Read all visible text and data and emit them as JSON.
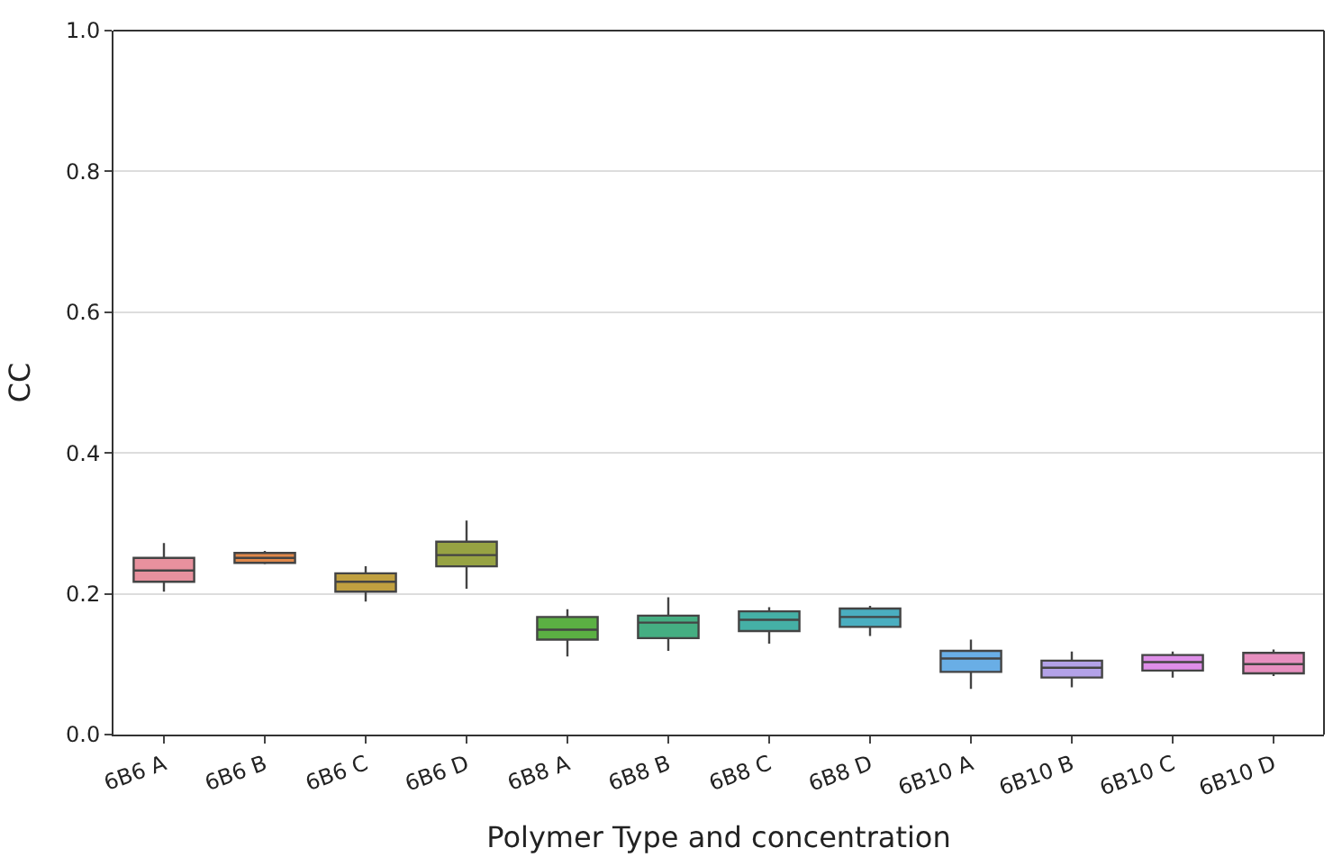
{
  "chart_data": {
    "type": "box",
    "xlabel": "Polymer Type and concentration",
    "ylabel": "CC",
    "categories": [
      "6B6 A",
      "6B6 B",
      "6B6 C",
      "6B6 D",
      "6B8 A",
      "6B8 B",
      "6B8 C",
      "6B8 D",
      "6B10 A",
      "6B10 B",
      "6B10 C",
      "6B10 D"
    ],
    "colors": [
      "#e8919e",
      "#e0884a",
      "#c0a040",
      "#97a343",
      "#5bb043",
      "#45ae82",
      "#45b0a6",
      "#4aaec0",
      "#69aee6",
      "#b3a2e8",
      "#de8ee8",
      "#e78fbf"
    ],
    "boxes": [
      {
        "low": 0.203,
        "q1": 0.217,
        "median": 0.233,
        "q3": 0.251,
        "high": 0.272
      },
      {
        "low": 0.242,
        "q1": 0.244,
        "median": 0.251,
        "q3": 0.258,
        "high": 0.261
      },
      {
        "low": 0.189,
        "q1": 0.203,
        "median": 0.217,
        "q3": 0.229,
        "high": 0.239
      },
      {
        "low": 0.207,
        "q1": 0.239,
        "median": 0.255,
        "q3": 0.274,
        "high": 0.304
      },
      {
        "low": 0.111,
        "q1": 0.135,
        "median": 0.149,
        "q3": 0.167,
        "high": 0.178
      },
      {
        "low": 0.119,
        "q1": 0.137,
        "median": 0.159,
        "q3": 0.169,
        "high": 0.195
      },
      {
        "low": 0.129,
        "q1": 0.147,
        "median": 0.163,
        "q3": 0.175,
        "high": 0.181
      },
      {
        "low": 0.14,
        "q1": 0.153,
        "median": 0.167,
        "q3": 0.179,
        "high": 0.183
      },
      {
        "low": 0.065,
        "q1": 0.089,
        "median": 0.108,
        "q3": 0.119,
        "high": 0.135
      },
      {
        "low": 0.067,
        "q1": 0.081,
        "median": 0.095,
        "q3": 0.105,
        "high": 0.118
      },
      {
        "low": 0.081,
        "q1": 0.091,
        "median": 0.103,
        "q3": 0.113,
        "high": 0.118
      },
      {
        "low": 0.083,
        "q1": 0.087,
        "median": 0.1,
        "q3": 0.116,
        "high": 0.121
      }
    ],
    "ylim": [
      0,
      1
    ],
    "yticks": [
      {
        "value": 0,
        "label": "0.0"
      },
      0.2,
      0.4,
      0.6,
      0.8,
      {
        "value": 1,
        "label": "1.0"
      }
    ],
    "grid": "y"
  }
}
